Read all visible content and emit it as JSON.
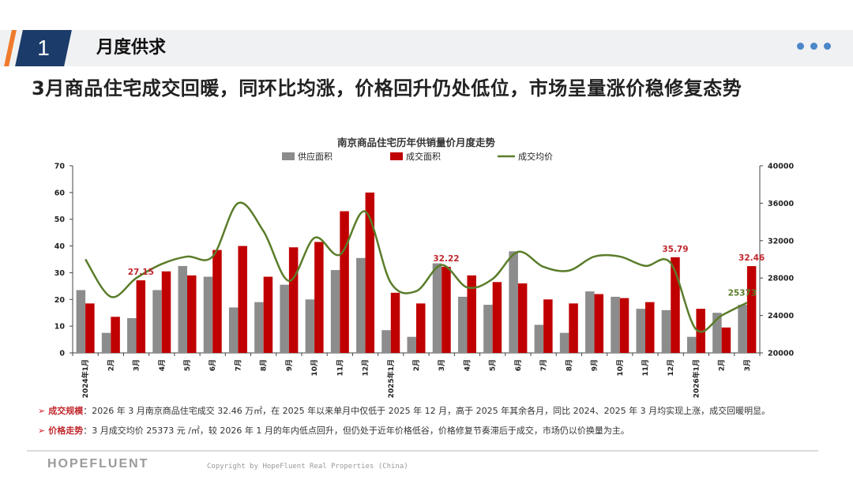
{
  "header": {
    "section_number": "1",
    "section_title": "月度供求",
    "headline": "3月商品住宅成交回暖，同环比均涨，价格回升仍处低位，市场呈量涨价稳修复态势"
  },
  "chart_data": {
    "type": "bar",
    "title": "南京商品住宅历年供销量价月度走势",
    "categories": [
      "2024年1月",
      "2月",
      "3月",
      "4月",
      "5月",
      "6月",
      "7月",
      "8月",
      "9月",
      "10月",
      "11月",
      "12月",
      "2025年1月",
      "2月",
      "3月",
      "4月",
      "5月",
      "6月",
      "7月",
      "8月",
      "9月",
      "10月",
      "11月",
      "12月",
      "2026年1月",
      "2月",
      "3月"
    ],
    "series": [
      {
        "name": "供应面积",
        "type": "bar",
        "axis": "left",
        "color": "#8c8c8c",
        "values": [
          23.5,
          7.5,
          13,
          23.5,
          32.5,
          28.5,
          17,
          19,
          25.5,
          20,
          31,
          35.5,
          8.5,
          6,
          33.5,
          21,
          18,
          38,
          10.5,
          7.5,
          23,
          21,
          16.5,
          16,
          6,
          15,
          18
        ]
      },
      {
        "name": "成交面积",
        "type": "bar",
        "axis": "left",
        "color": "#c00000",
        "values": [
          18.5,
          13.5,
          27.15,
          30.5,
          29,
          38.5,
          40,
          28.5,
          39.5,
          41.5,
          53,
          60,
          22.5,
          18.5,
          32.22,
          29,
          26.5,
          26,
          20,
          18.5,
          22,
          20.5,
          19,
          35.79,
          16.5,
          9.5,
          32.46
        ]
      },
      {
        "name": "成交均价",
        "type": "line",
        "axis": "right",
        "color": "#5a7d2a",
        "values": [
          30000,
          26000,
          28000,
          29500,
          30300,
          30300,
          36000,
          33000,
          27700,
          32300,
          30500,
          35100,
          27500,
          26600,
          29400,
          27000,
          27900,
          30800,
          29200,
          28800,
          30300,
          30300,
          29300,
          29600,
          22500,
          24000,
          25373
        ]
      }
    ],
    "ylim_left": [
      0,
      70
    ],
    "ylim_right": [
      20000,
      40000
    ],
    "yticks_left": [
      "70",
      "60",
      "50",
      "40",
      "30",
      "20",
      "10",
      "0"
    ],
    "yticks_right": [
      "40000",
      "36000",
      "32000",
      "28000",
      "24000",
      "20000"
    ],
    "data_labels": [
      {
        "series": 1,
        "index": 2,
        "text": "27.15"
      },
      {
        "series": 1,
        "index": 14,
        "text": "32.22"
      },
      {
        "series": 1,
        "index": 23,
        "text": "35.79"
      },
      {
        "series": 1,
        "index": 26,
        "text": "32.46"
      },
      {
        "series": 2,
        "index": 26,
        "text": "25373"
      }
    ],
    "legend_position": "top"
  },
  "notes": [
    {
      "key": "成交规模",
      "text": "：2026 年 3 月南京商品住宅成交 32.46 万㎡，在 2025 年以来单月中仅低于 2025 年 12 月，高于 2025 年其余各月，同比 2024、2025 年 3 月均实现上涨，成交回暖明显。"
    },
    {
      "key": "价格走势",
      "text": "：3 月成交均价 25373 元 /㎡，较 2026 年 1 月的年内低点回升，但仍处于近年价格低谷，价格修复节奏滞后于成交，市场仍以价换量为主。"
    }
  ],
  "footer": {
    "brand": "HOPEFLUENT",
    "copyright": "Copyright by HopeFluent Real Properties (China)"
  }
}
